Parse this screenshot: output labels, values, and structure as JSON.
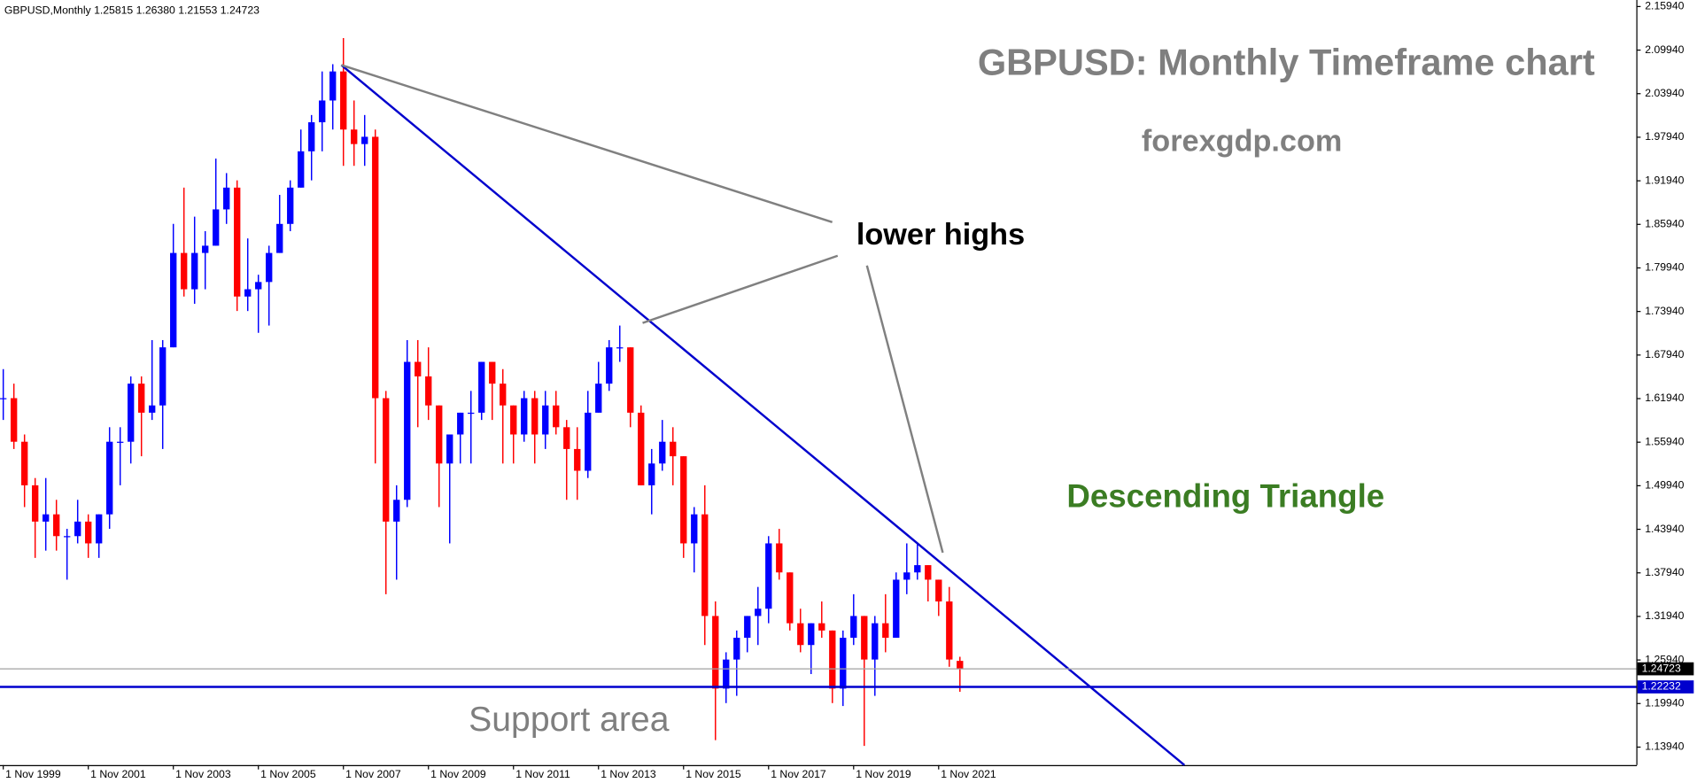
{
  "chart_data": {
    "type": "candlestick",
    "header": "GBPUSD,Monthly  1.25815 1.26380 1.21553 1.24723",
    "title": "GBPUSD: Monthly Timeframe chart",
    "subtitle": "forexgdp.com",
    "annotations": {
      "lower_highs": "lower highs",
      "pattern": "Descending Triangle",
      "support": "Support area"
    },
    "up_color": "#0000ff",
    "down_color": "#ff0000",
    "x": [
      0,
      3,
      6,
      9,
      12,
      15,
      18,
      21,
      24,
      27,
      30,
      33,
      36,
      39,
      42,
      45,
      48,
      51,
      54,
      57,
      60,
      63,
      66,
      69,
      72,
      75,
      78,
      81,
      84,
      87,
      90,
      93,
      96,
      99,
      102,
      105,
      108,
      111,
      114,
      117,
      120,
      123,
      126,
      129,
      132,
      135,
      138,
      141,
      144,
      147,
      150,
      153,
      156,
      159,
      162,
      165,
      168,
      171,
      174,
      177,
      180,
      183,
      186,
      189,
      192,
      195,
      198,
      201,
      204,
      207,
      210,
      213,
      216,
      219,
      222,
      225,
      228,
      231,
      234,
      237,
      240,
      243,
      246,
      249,
      252,
      255,
      258,
      261,
      264,
      267,
      270
    ],
    "open": [
      1.62,
      1.62,
      1.56,
      1.5,
      1.45,
      1.46,
      1.43,
      1.43,
      1.45,
      1.42,
      1.46,
      1.56,
      1.56,
      1.64,
      1.6,
      1.61,
      1.69,
      1.82,
      1.77,
      1.82,
      1.83,
      1.88,
      1.91,
      1.76,
      1.77,
      1.78,
      1.82,
      1.86,
      1.91,
      1.96,
      2.0,
      2.03,
      2.07,
      1.99,
      1.97,
      1.98,
      1.62,
      1.45,
      1.48,
      1.67,
      1.65,
      1.61,
      1.53,
      1.57,
      1.6,
      1.6,
      1.67,
      1.64,
      1.61,
      1.57,
      1.62,
      1.57,
      1.61,
      1.58,
      1.55,
      1.52,
      1.6,
      1.64,
      1.69,
      1.69,
      1.6,
      1.5,
      1.53,
      1.56,
      1.54,
      1.42,
      1.46,
      1.32,
      1.22,
      1.26,
      1.29,
      1.32,
      1.33,
      1.42,
      1.38,
      1.31,
      1.28,
      1.31,
      1.3,
      1.22,
      1.29,
      1.32,
      1.26,
      1.31,
      1.29,
      1.37,
      1.38,
      1.39,
      1.37,
      1.34,
      1.25815
    ],
    "high": [
      1.66,
      1.64,
      1.57,
      1.51,
      1.51,
      1.48,
      1.44,
      1.48,
      1.46,
      1.46,
      1.58,
      1.58,
      1.65,
      1.65,
      1.7,
      1.7,
      1.86,
      1.91,
      1.87,
      1.85,
      1.95,
      1.93,
      1.92,
      1.84,
      1.79,
      1.83,
      1.9,
      1.92,
      1.99,
      2.01,
      2.07,
      2.08,
      2.116,
      2.03,
      2.01,
      1.99,
      1.63,
      1.5,
      1.7,
      1.7,
      1.69,
      1.61,
      1.57,
      1.6,
      1.63,
      1.67,
      1.67,
      1.66,
      1.61,
      1.63,
      1.63,
      1.63,
      1.63,
      1.59,
      1.58,
      1.63,
      1.67,
      1.7,
      1.72,
      1.69,
      1.61,
      1.55,
      1.59,
      1.58,
      1.54,
      1.47,
      1.5,
      1.34,
      1.27,
      1.3,
      1.32,
      1.36,
      1.43,
      1.44,
      1.38,
      1.33,
      1.31,
      1.34,
      1.3,
      1.3,
      1.35,
      1.32,
      1.32,
      1.35,
      1.38,
      1.42,
      1.42,
      1.39,
      1.37,
      1.36,
      1.2638
    ],
    "low": [
      1.59,
      1.55,
      1.47,
      1.4,
      1.41,
      1.41,
      1.37,
      1.42,
      1.4,
      1.4,
      1.44,
      1.5,
      1.53,
      1.54,
      1.59,
      1.55,
      1.69,
      1.76,
      1.75,
      1.77,
      1.83,
      1.86,
      1.74,
      1.74,
      1.71,
      1.72,
      1.82,
      1.85,
      1.91,
      1.92,
      1.96,
      1.99,
      1.94,
      1.94,
      1.94,
      1.53,
      1.35,
      1.37,
      1.47,
      1.58,
      1.59,
      1.47,
      1.42,
      1.53,
      1.53,
      1.59,
      1.59,
      1.53,
      1.53,
      1.56,
      1.53,
      1.55,
      1.57,
      1.48,
      1.48,
      1.51,
      1.6,
      1.63,
      1.67,
      1.58,
      1.5,
      1.46,
      1.52,
      1.5,
      1.4,
      1.38,
      1.28,
      1.149,
      1.2,
      1.21,
      1.27,
      1.28,
      1.31,
      1.37,
      1.3,
      1.27,
      1.24,
      1.29,
      1.2,
      1.196,
      1.28,
      1.141,
      1.21,
      1.27,
      1.29,
      1.35,
      1.37,
      1.34,
      1.32,
      1.25,
      1.21553
    ],
    "close": [
      1.62,
      1.56,
      1.5,
      1.45,
      1.46,
      1.43,
      1.43,
      1.45,
      1.42,
      1.46,
      1.56,
      1.56,
      1.64,
      1.6,
      1.61,
      1.69,
      1.82,
      1.77,
      1.82,
      1.83,
      1.88,
      1.91,
      1.76,
      1.77,
      1.78,
      1.82,
      1.86,
      1.91,
      1.96,
      2.0,
      2.03,
      2.07,
      1.99,
      1.97,
      1.98,
      1.62,
      1.45,
      1.48,
      1.67,
      1.65,
      1.61,
      1.53,
      1.57,
      1.6,
      1.6,
      1.67,
      1.64,
      1.61,
      1.57,
      1.62,
      1.57,
      1.61,
      1.58,
      1.55,
      1.52,
      1.6,
      1.64,
      1.69,
      1.69,
      1.6,
      1.5,
      1.53,
      1.56,
      1.54,
      1.42,
      1.46,
      1.32,
      1.22,
      1.26,
      1.29,
      1.32,
      1.33,
      1.42,
      1.38,
      1.31,
      1.28,
      1.31,
      1.3,
      1.22,
      1.29,
      1.32,
      1.26,
      1.31,
      1.29,
      1.37,
      1.38,
      1.39,
      1.37,
      1.34,
      1.26,
      1.24723
    ],
    "xlim": [
      -0.92,
      460.9
    ],
    "xticks": [
      {
        "value": 0,
        "label": "1 Nov 1999"
      },
      {
        "value": 24,
        "label": "1 Nov 2001"
      },
      {
        "value": 48,
        "label": "1 Nov 2003"
      },
      {
        "value": 72,
        "label": "1 Nov 2005"
      },
      {
        "value": 96,
        "label": "1 Nov 2007"
      },
      {
        "value": 120,
        "label": "1 Nov 2009"
      },
      {
        "value": 144,
        "label": "1 Nov 2011"
      },
      {
        "value": 168,
        "label": "1 Nov 2013"
      },
      {
        "value": 192,
        "label": "1 Nov 2015"
      },
      {
        "value": 216,
        "label": "1 Nov 2017"
      },
      {
        "value": 240,
        "label": "1 Nov 2019"
      },
      {
        "value": 264,
        "label": "1 Nov 2021"
      }
    ],
    "ylim": [
      1.1146,
      2.1684
    ],
    "yticks": [
      {
        "value": 2.1594,
        "label": "2.15940"
      },
      {
        "value": 2.0994,
        "label": "2.09940"
      },
      {
        "value": 2.0394,
        "label": "2.03940"
      },
      {
        "value": 1.9794,
        "label": "1.97940"
      },
      {
        "value": 1.9194,
        "label": "1.91940"
      },
      {
        "value": 1.8594,
        "label": "1.85940"
      },
      {
        "value": 1.7994,
        "label": "1.79940"
      },
      {
        "value": 1.7394,
        "label": "1.73940"
      },
      {
        "value": 1.6794,
        "label": "1.67940"
      },
      {
        "value": 1.6194,
        "label": "1.61940"
      },
      {
        "value": 1.5594,
        "label": "1.55940"
      },
      {
        "value": 1.4994,
        "label": "1.49940"
      },
      {
        "value": 1.4394,
        "label": "1.43940"
      },
      {
        "value": 1.3794,
        "label": "1.37940"
      },
      {
        "value": 1.3194,
        "label": "1.31940"
      },
      {
        "value": 1.2594,
        "label": "1.25940"
      },
      {
        "value": 1.1994,
        "label": "1.19940"
      },
      {
        "value": 1.1394,
        "label": "1.13940"
      }
    ],
    "hlines": [
      {
        "value": 1.24723,
        "color": "#a0a0a0",
        "label_bg": "#000000",
        "width": 1
      },
      {
        "value": 1.22232,
        "color": "#0000cd",
        "label_bg": "#0000cd",
        "width": 2
      }
    ]
  }
}
